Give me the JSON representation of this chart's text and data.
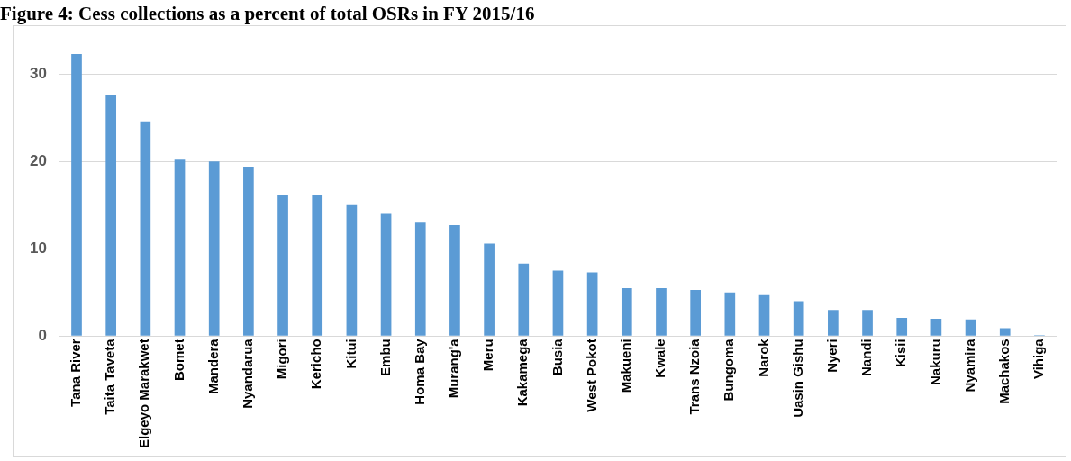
{
  "chart_data": {
    "type": "bar",
    "title": "Figure 4: Cess collections as a percent of total OSRs in FY 2015/16",
    "categories": [
      "Tana River",
      "Taita Taveta",
      "Elgeyo Marakwet",
      "Bomet",
      "Mandera",
      "Nyandarua",
      "Migori",
      "Kericho",
      "Kitui",
      "Embu",
      "Homa Bay",
      "Murang'a",
      "Meru",
      "Kakamega",
      "Busia",
      "West Pokot",
      "Makueni",
      "Kwale",
      "Trans Nzoia",
      "Bungoma",
      "Narok",
      "Uasin Gishu",
      "Nyeri",
      "Nandi",
      "Kisii",
      "Nakuru",
      "Nyamira",
      "Machakos",
      "Vihiga"
    ],
    "values": [
      32.3,
      27.6,
      24.6,
      20.2,
      20.0,
      19.4,
      16.1,
      16.1,
      15.0,
      14.0,
      13.0,
      12.7,
      10.6,
      8.3,
      7.5,
      7.3,
      5.5,
      5.5,
      5.3,
      5.0,
      4.7,
      4.0,
      3.0,
      3.0,
      2.1,
      2.0,
      1.9,
      0.9,
      0.1
    ],
    "color": "#5b9bd5",
    "ylim": [
      0,
      33
    ],
    "yticks": [
      0,
      10,
      20,
      30
    ],
    "grid": "y",
    "legend": false
  }
}
